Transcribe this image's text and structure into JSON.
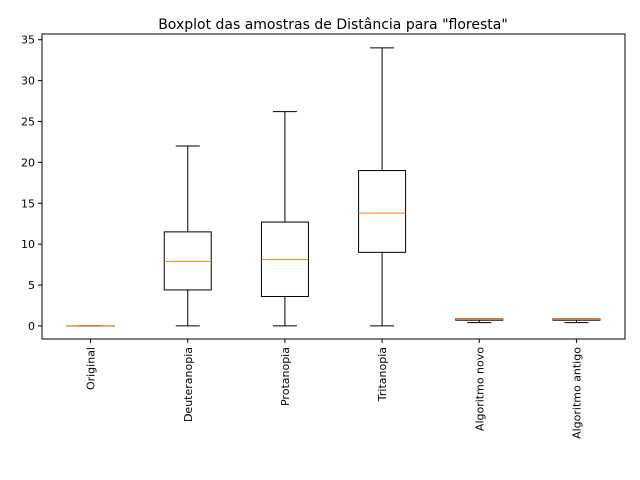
{
  "chart_data": {
    "type": "boxplot",
    "title": "Boxplot das amostras de Distância para \"floresta\"",
    "xlabel": "",
    "ylabel": "",
    "ylim": [
      -1.6,
      35.7
    ],
    "yticks": [
      0,
      5,
      10,
      15,
      20,
      25,
      30,
      35
    ],
    "categories": [
      "Original",
      "Deuteranopia",
      "Protanopia",
      "Tritanopia",
      "Algoritmo novo",
      "Algoritmo antigo"
    ],
    "boxes": [
      {
        "label": "Original",
        "whisker_low": 0.0,
        "q1": 0.0,
        "median": 0.0,
        "q3": 0.0,
        "whisker_high": 0.0
      },
      {
        "label": "Deuteranopia",
        "whisker_low": 0.0,
        "q1": 4.4,
        "median": 7.9,
        "q3": 11.5,
        "whisker_high": 22.0
      },
      {
        "label": "Protanopia",
        "whisker_low": 0.0,
        "q1": 3.6,
        "median": 8.1,
        "q3": 12.7,
        "whisker_high": 26.2
      },
      {
        "label": "Tritanopia",
        "whisker_low": 0.0,
        "q1": 9.0,
        "median": 13.8,
        "q3": 19.0,
        "whisker_high": 34.0
      },
      {
        "label": "Algoritmo novo",
        "whisker_low": 0.4,
        "q1": 0.7,
        "median": 0.8,
        "q3": 0.85,
        "whisker_high": 0.85
      },
      {
        "label": "Algoritmo antigo",
        "whisker_low": 0.4,
        "q1": 0.7,
        "median": 0.8,
        "q3": 0.85,
        "whisker_high": 0.85
      }
    ],
    "colors": {
      "box": "#000000",
      "median": "#ff7f0e"
    },
    "grid": false,
    "legend": "none"
  }
}
